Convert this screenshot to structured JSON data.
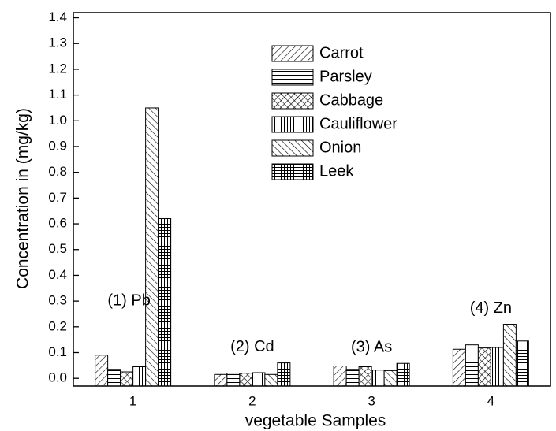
{
  "chart_data": {
    "type": "bar",
    "x_label": "vegetable Samples",
    "y_label": "Concentration in (mg/kg)",
    "categories": [
      "1",
      "2",
      "3",
      "4"
    ],
    "annotations": [
      "(1) Pb",
      "(2) Cd",
      "(3) As",
      "(4) Zn"
    ],
    "series": [
      {
        "name": "Carrot",
        "color": "#000000",
        "pattern": "diagonal",
        "values": [
          0.09,
          0.015,
          0.048,
          0.113
        ]
      },
      {
        "name": "Parsley",
        "color": "#000000",
        "pattern": "horizontal",
        "values": [
          0.035,
          0.02,
          0.035,
          0.13
        ]
      },
      {
        "name": "Cabbage",
        "color": "#000000",
        "pattern": "crosshatch",
        "values": [
          0.025,
          0.02,
          0.045,
          0.118
        ]
      },
      {
        "name": "Cauliflower",
        "color": "#000000",
        "pattern": "vertical",
        "values": [
          0.045,
          0.022,
          0.032,
          0.12
        ]
      },
      {
        "name": "Onion",
        "color": "#000000",
        "pattern": "backdiagonal",
        "values": [
          1.05,
          0.015,
          0.03,
          0.21
        ]
      },
      {
        "name": "Leek",
        "color": "#000000",
        "pattern": "grid",
        "values": [
          0.62,
          0.06,
          0.058,
          0.145
        ]
      }
    ],
    "ylim": [
      -0.03,
      1.42
    ],
    "yticks": [
      {
        "value": 0,
        "label": "0.0"
      },
      0.1,
      0.2,
      0.3,
      0.4,
      0.5,
      0.6,
      0.7,
      0.8,
      0.9,
      {
        "value": 1,
        "label": "1.0"
      },
      1.1,
      1.2,
      1.3,
      1.4
    ],
    "legend": "top"
  }
}
